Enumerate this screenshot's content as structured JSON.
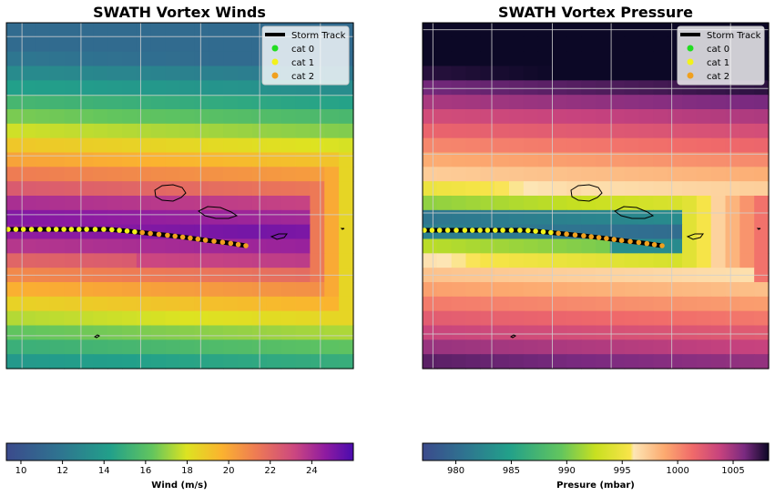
{
  "chart_data": [
    {
      "type": "heatmap",
      "title": "SWATH Vortex Winds",
      "colorbar": {
        "label": "Wind (m/s)",
        "ticks": [
          10,
          12,
          14,
          16,
          18,
          20,
          22,
          24
        ],
        "range": [
          9.3,
          26
        ],
        "colormap": "viridis-plasma"
      },
      "legend": {
        "placement": "top-right",
        "entries": [
          "Storm Track",
          "cat 0",
          "cat 1",
          "cat 2"
        ]
      },
      "grid": true,
      "storm_track": {
        "x_pct": [
          0.0,
          0.08,
          0.17,
          0.25,
          0.33,
          0.42,
          0.5,
          0.58,
          0.67,
          0.75,
          0.83,
          0.92,
          1.0
        ],
        "y_pct": [
          0.0,
          0.0,
          0.0,
          0.0,
          0.0,
          0.0,
          0.1,
          0.22,
          0.36,
          0.5,
          0.66,
          0.82,
          1.0
        ],
        "category": [
          1,
          1,
          1,
          1,
          1,
          1,
          1,
          2,
          2,
          2,
          2,
          2,
          2
        ]
      }
    },
    {
      "type": "heatmap",
      "title": "SWATH Vortex Pressure",
      "colorbar": {
        "label": "Presure (mbar)",
        "ticks": [
          980,
          985,
          990,
          995,
          1000,
          1005
        ],
        "range": [
          977,
          1008.2
        ],
        "colormap": "viridis-magma"
      },
      "legend": {
        "placement": "top-right",
        "entries": [
          "Storm Track",
          "cat 0",
          "cat 1",
          "cat 2"
        ]
      },
      "grid": true,
      "storm_track": {
        "x_pct": [
          0.0,
          0.08,
          0.17,
          0.25,
          0.33,
          0.42,
          0.5,
          0.58,
          0.67,
          0.75,
          0.83,
          0.92,
          1.0
        ],
        "y_pct": [
          0.0,
          0.0,
          0.0,
          0.0,
          0.0,
          0.0,
          0.1,
          0.22,
          0.36,
          0.5,
          0.66,
          0.82,
          1.0
        ],
        "category": [
          1,
          1,
          1,
          1,
          1,
          1,
          1,
          2,
          2,
          2,
          2,
          2,
          2
        ]
      }
    }
  ],
  "colors": {
    "cat0": "#22dd22",
    "cat1": "#f2f21a",
    "cat2": "#f0a01e",
    "track": "#000000",
    "grid": "#cfcfcf"
  }
}
